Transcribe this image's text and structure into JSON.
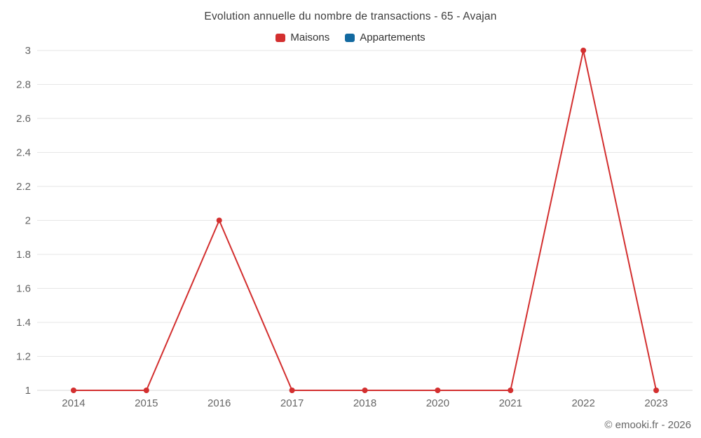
{
  "title": "Evolution annuelle du nombre de transactions - 65 - Avajan",
  "legend": {
    "items": [
      {
        "label": "Maisons",
        "color": "#d32f2f"
      },
      {
        "label": "Appartements",
        "color": "#1269a0"
      }
    ]
  },
  "footer": {
    "credits": "© emooki.fr - 2026"
  },
  "chart_data": {
    "type": "line",
    "title": "Evolution annuelle du nombre de transactions - 65 - Avajan",
    "categories": [
      "2014",
      "2015",
      "2016",
      "2017",
      "2018",
      "2020",
      "2021",
      "2022",
      "2023"
    ],
    "series": [
      {
        "name": "Maisons",
        "color": "#d32f2f",
        "values": [
          1,
          1,
          2,
          1,
          1,
          1,
          1,
          3,
          1
        ]
      },
      {
        "name": "Appartements",
        "color": "#1269a0",
        "values": []
      }
    ],
    "xlabel": "",
    "ylabel": "",
    "ylim": [
      1,
      3
    ],
    "ytick_step": 0.2,
    "yticks": [
      1,
      1.2,
      1.4,
      1.6,
      1.8,
      2,
      2.2,
      2.4,
      2.6,
      2.8,
      3
    ],
    "grid": true,
    "gridline_color": "#e6e6e6",
    "legend_position": "top",
    "marker_radius": 4
  }
}
